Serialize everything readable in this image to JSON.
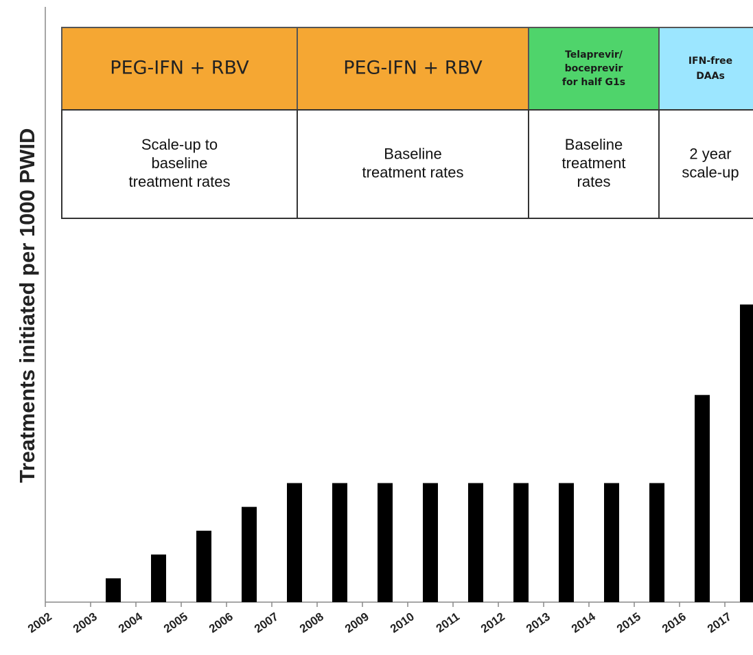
{
  "chart_data": {
    "type": "bar",
    "y_label": "Treatments initiated per 1000 PWID",
    "categories": [
      "2002",
      "2003",
      "2004",
      "2005",
      "2006",
      "2007",
      "2008",
      "2009",
      "2010",
      "2011",
      "2012",
      "2013",
      "2014",
      "2015",
      "2016",
      "2017"
    ],
    "values": [
      0,
      1,
      2,
      3,
      4,
      5,
      5,
      5,
      5,
      5,
      5,
      5,
      5,
      5,
      8.7,
      12.5
    ],
    "color": "#000000",
    "ylim": [
      0,
      25
    ],
    "phases": [
      {
        "drug": [
          "PEG-IFN + RBV"
        ],
        "description": [
          "Scale-up to",
          "baseline",
          "treatment rates"
        ],
        "color": "#f5a733"
      },
      {
        "drug": [
          "PEG-IFN + RBV"
        ],
        "description": [
          "Baseline",
          "treatment rates"
        ],
        "color": "#f5a733"
      },
      {
        "drug": [
          "Telaprevir/",
          "boceprevir",
          "for half G1s"
        ],
        "description": [
          "Baseline",
          "treatment",
          "rates"
        ],
        "color": "#4fd46b"
      },
      {
        "drug": [
          "IFN-free",
          "DAAs"
        ],
        "description": [
          "2 year",
          "scale-up"
        ],
        "color": "#9ce6ff"
      }
    ]
  }
}
